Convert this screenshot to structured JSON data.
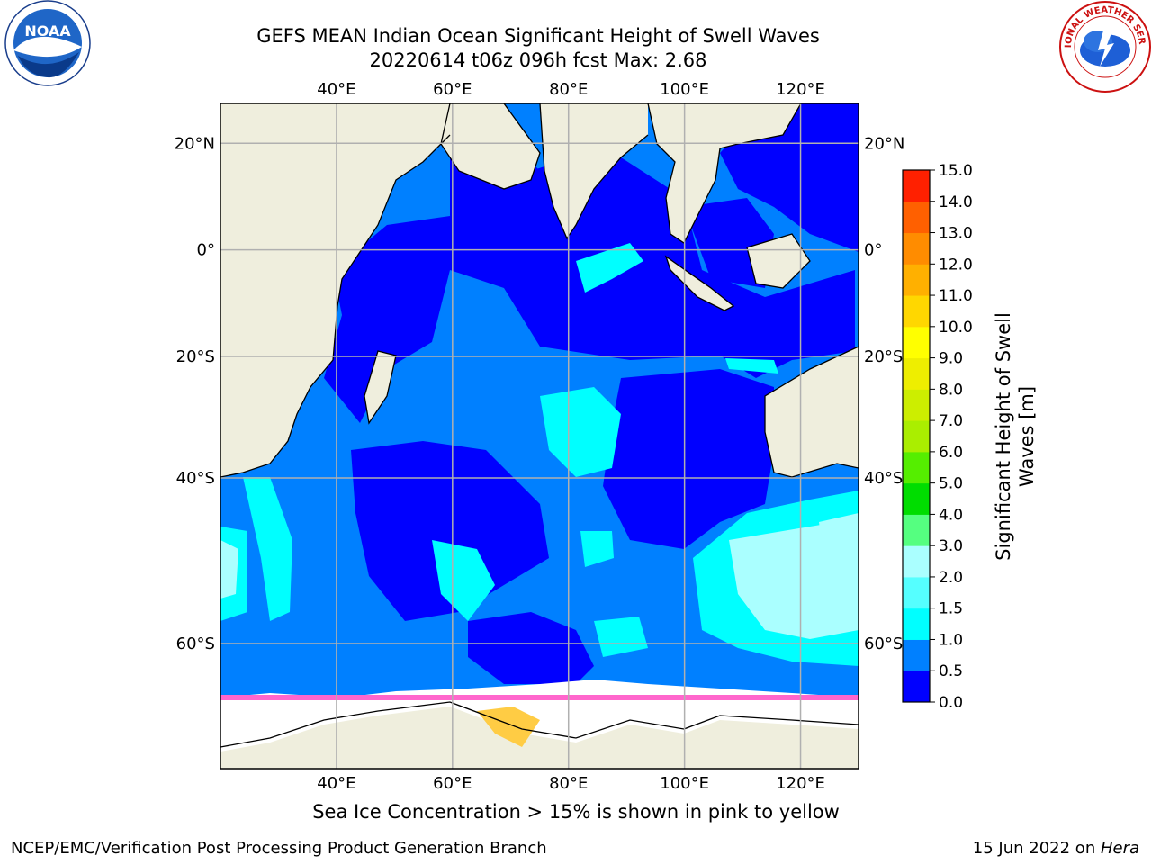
{
  "header": {
    "title_line1": "GEFS MEAN Indian Ocean Significant Height of Swell Waves",
    "title_line2": "20220614 t06z 096h fcst   Max: 2.68"
  },
  "logos": {
    "left": {
      "name": "noaa-logo",
      "text": "NOAA"
    },
    "right": {
      "name": "nws-logo",
      "text": "NATIONAL WEATHER SERVICE"
    }
  },
  "map": {
    "lon_ticks": [
      "40°E",
      "60°E",
      "80°E",
      "100°E",
      "120°E"
    ],
    "lat_ticks": [
      "20°N",
      "0°",
      "20°S",
      "40°S",
      "60°S"
    ],
    "extent": {
      "lon": [
        20,
        130
      ],
      "lat": [
        -70,
        27
      ]
    },
    "colors": {
      "land": "#efeedd",
      "ice": "#ffffff",
      "swell_0_05": "#0000ff",
      "swell_05_10": "#0080ff",
      "swell_10_15": "#00ffff",
      "swell_15_20": "#55ffff",
      "swell_20_30": "#aaffff",
      "sea_ice_edge": "#ff66cc",
      "sea_ice_inner": "#ffcc44",
      "grid": "#b0b0b0"
    }
  },
  "colorbar": {
    "label_line1": "Significant Height of Swell",
    "label_line2": "Waves [m]",
    "ticks": [
      "0.0",
      "0.5",
      "1.0",
      "1.5",
      "2.0",
      "3.0",
      "4.0",
      "5.0",
      "6.0",
      "7.0",
      "8.0",
      "9.0",
      "10.0",
      "11.0",
      "12.0",
      "13.0",
      "14.0",
      "15.0"
    ],
    "colors": [
      "#0000ff",
      "#0080ff",
      "#00ffff",
      "#55ffff",
      "#aaffff",
      "#55ff80",
      "#00dd00",
      "#55ee00",
      "#aaee00",
      "#ccee00",
      "#eeee00",
      "#ffff00",
      "#ffd700",
      "#ffb000",
      "#ff8c00",
      "#ff6000",
      "#ff2000"
    ]
  },
  "footer": {
    "caption": "Sea Ice Concentration > 15% is shown in pink to yellow",
    "credit": "NCEP/EMC/Verification Post Processing Product Generation Branch",
    "date": "15 Jun 2022 on ",
    "host": "Hera"
  }
}
